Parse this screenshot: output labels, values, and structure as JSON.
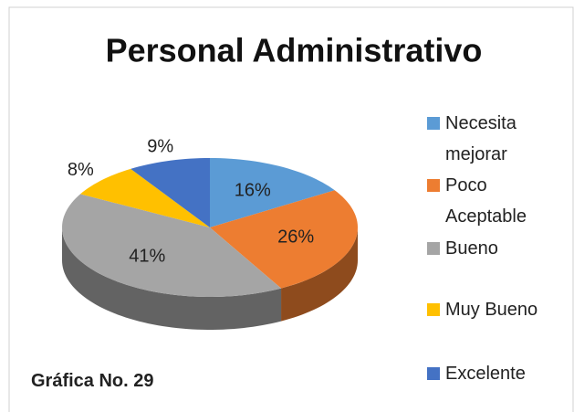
{
  "chart_data": {
    "type": "pie3d",
    "title": "Personal Administrativo",
    "categories": [
      "Necesita mejorar",
      "Poco Aceptable",
      "Bueno",
      "Muy Bueno",
      "Excelente"
    ],
    "values": [
      16,
      26,
      41,
      8,
      9
    ],
    "value_labels": [
      "16%",
      "26%",
      "41%",
      "8%",
      "9%"
    ],
    "colors": [
      "#5b9bd5",
      "#ed7d31",
      "#a5a5a5",
      "#ffc000",
      "#4472c4"
    ],
    "legend": "right"
  },
  "caption": "Gráfica No. 29"
}
